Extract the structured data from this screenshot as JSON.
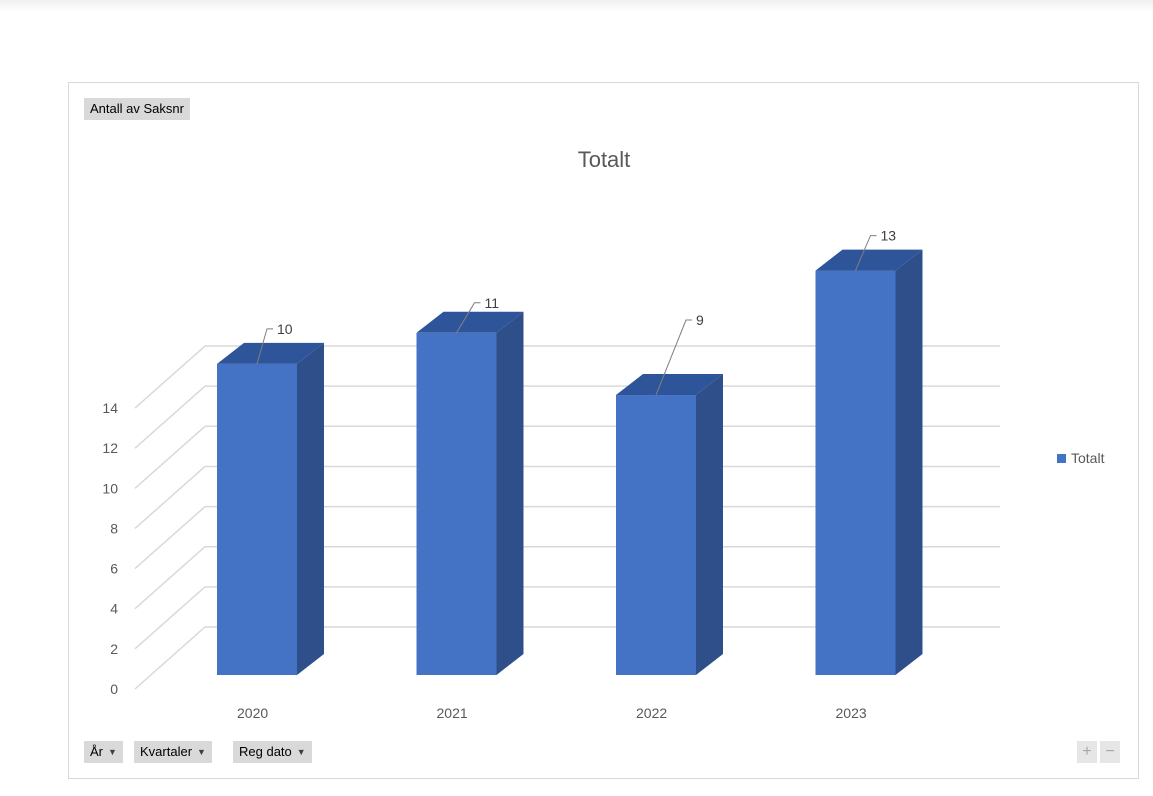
{
  "pivot": {
    "value_field": "Antall av Saksnr",
    "axis_fields": [
      {
        "label": "År"
      },
      {
        "label": "Kvartaler"
      },
      {
        "label": "Reg dato"
      }
    ],
    "zoom_in": "+",
    "zoom_out": "−"
  },
  "chart_data": {
    "type": "bar",
    "title": "Totalt",
    "categories": [
      "2020",
      "2021",
      "2022",
      "2023"
    ],
    "series": [
      {
        "name": "Totalt",
        "values": [
          10,
          11,
          9,
          13
        ],
        "color": "#4472c4"
      }
    ],
    "ylim": [
      0,
      14
    ],
    "yticks": [
      "0",
      "2",
      "4",
      "6",
      "8",
      "10",
      "12",
      "14"
    ],
    "grid": true,
    "legend_position": "right",
    "three_d": true
  }
}
